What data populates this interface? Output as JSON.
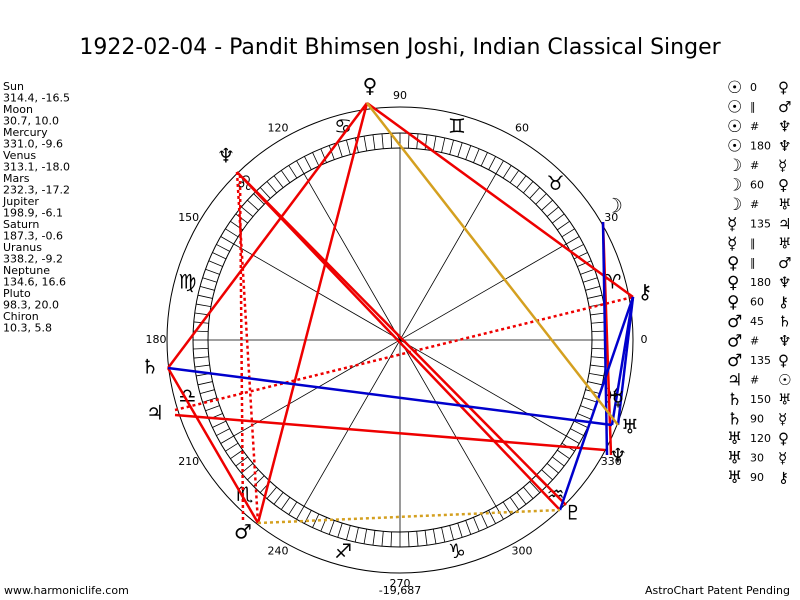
{
  "title": "1922-02-04 - Pandit Bhimsen Joshi, Indian Classical Singer",
  "planets": [
    {
      "name": "Sun",
      "coords": "314.4, -16.5"
    },
    {
      "name": "Moon",
      "coords": "30.7, 10.0"
    },
    {
      "name": "Mercury",
      "coords": "331.0, -9.6"
    },
    {
      "name": "Venus",
      "coords": "313.1, -18.0"
    },
    {
      "name": "Mars",
      "coords": "232.3, -17.2"
    },
    {
      "name": "Jupiter",
      "coords": "198.9, -6.1"
    },
    {
      "name": "Saturn",
      "coords": "187.3, -0.6"
    },
    {
      "name": "Uranus",
      "coords": "338.2, -9.2"
    },
    {
      "name": "Neptune",
      "coords": "134.6, 16.6"
    },
    {
      "name": "Pluto",
      "coords": "98.3, 20.0"
    },
    {
      "name": "Chiron",
      "coords": "10.3, 5.8"
    }
  ],
  "aspects": [
    {
      "from": "☉",
      "aspect": "0",
      "to": "♀"
    },
    {
      "from": "☉",
      "aspect": "∥",
      "to": "♂"
    },
    {
      "from": "☉",
      "aspect": "#",
      "to": "♆"
    },
    {
      "from": "☉",
      "aspect": "180",
      "to": "♆"
    },
    {
      "from": "☽",
      "aspect": "#",
      "to": "☿"
    },
    {
      "from": "☽",
      "aspect": "60",
      "to": "♀"
    },
    {
      "from": "☽",
      "aspect": "#",
      "to": "♅"
    },
    {
      "from": "☿",
      "aspect": "135",
      "to": "♃"
    },
    {
      "from": "☿",
      "aspect": "∥",
      "to": "♅"
    },
    {
      "from": "♀",
      "aspect": "∥",
      "to": "♂"
    },
    {
      "from": "♀",
      "aspect": "180",
      "to": "♆"
    },
    {
      "from": "♀",
      "aspect": "60",
      "to": "⚷"
    },
    {
      "from": "♂",
      "aspect": "45",
      "to": "♄"
    },
    {
      "from": "♂",
      "aspect": "#",
      "to": "♆"
    },
    {
      "from": "♂",
      "aspect": "135",
      "to": "♀"
    },
    {
      "from": "♃",
      "aspect": "#",
      "to": "☉"
    },
    {
      "from": "♄",
      "aspect": "150",
      "to": "♅"
    },
    {
      "from": "♄",
      "aspect": "90",
      "to": "☿"
    },
    {
      "from": "♅",
      "aspect": "120",
      "to": "♀"
    },
    {
      "from": "♅",
      "aspect": "30",
      "to": "☿"
    },
    {
      "from": "♅",
      "aspect": "90",
      "to": "⚷"
    }
  ],
  "degree_labels": [
    "0",
    "30",
    "60",
    "90",
    "120",
    "150",
    "180",
    "210",
    "240",
    "270",
    "300",
    "330"
  ],
  "signs": [
    "♈",
    "♉",
    "♊",
    "♋",
    "♌",
    "♍",
    "♎",
    "♏",
    "♐",
    "♑",
    "♒",
    "♓"
  ],
  "wheel_glyphs": [
    "♀",
    "♆",
    "☽",
    "⚷",
    "♄",
    "♃",
    "☿",
    "♅",
    "♆",
    "♇",
    "♂"
  ],
  "footer": {
    "left": "www.harmoniclife.com",
    "center": "-19,687",
    "right": "AstroChart Patent Pending"
  }
}
